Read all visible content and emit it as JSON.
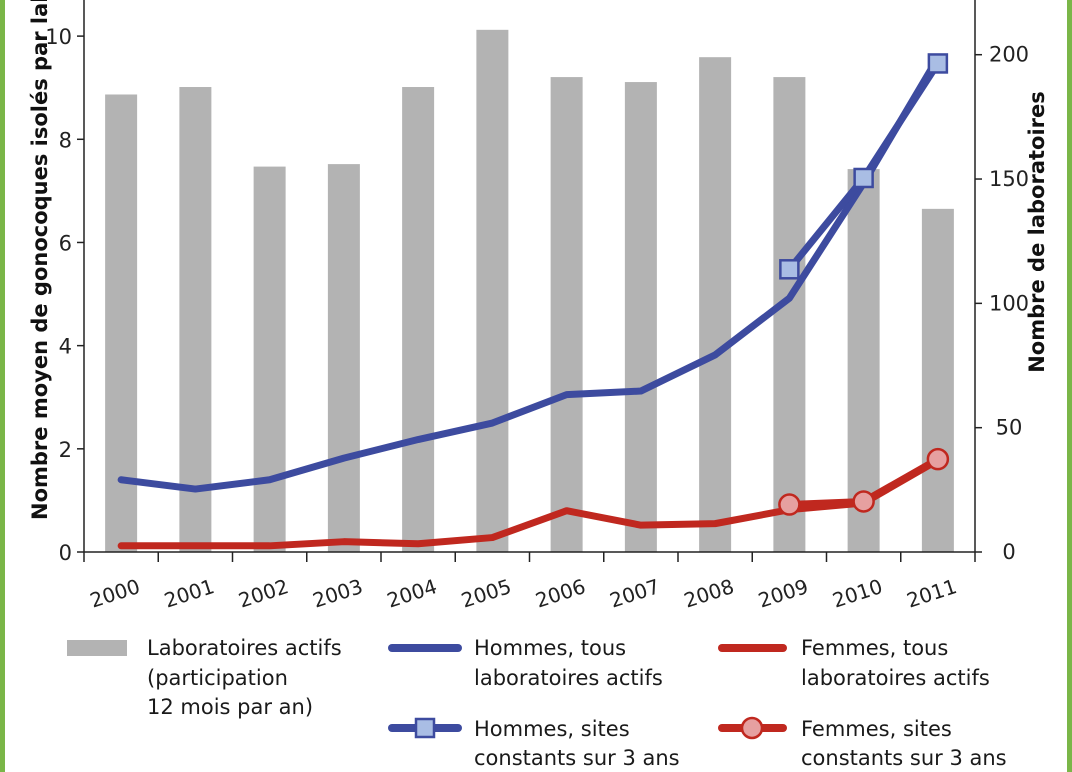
{
  "colors": {
    "bars": "#b3b3b3",
    "men": "#3d4b9f",
    "women": "#c0281f",
    "men_marker_fill": "#a9bde4",
    "women_marker_fill": "#e6a0a0",
    "border": "#7ab648"
  },
  "chart_data": {
    "type": "bar",
    "combo": "bar + line, dual y-axis",
    "categories": [
      "2000",
      "2001",
      "2002",
      "2003",
      "2004",
      "2005",
      "2006",
      "2007",
      "2008",
      "2009",
      "2010",
      "2011"
    ],
    "ylabel_left": "Nombre moyen de gonocoques isolés par laboratoire",
    "ylabel_right": "Nombre de laboratoires",
    "ylim_left": [
      0,
      10.7
    ],
    "ylim_right": [
      0,
      222
    ],
    "yticks_left": [
      "0",
      "2",
      "4",
      "6",
      "8",
      "10"
    ],
    "yticks_right": [
      "0",
      "50",
      "100",
      "150",
      "200"
    ],
    "bars": {
      "name": "Laboratoires actifs (participation 12 mois par an)",
      "axis": "right",
      "values": [
        184,
        187,
        155,
        156,
        187,
        210,
        191,
        189,
        199,
        191,
        154,
        138
      ]
    },
    "series": [
      {
        "name": "Hommes, tous laboratoires actifs",
        "axis": "left",
        "marker": "none",
        "values": [
          1.4,
          1.22,
          1.4,
          1.82,
          2.18,
          2.5,
          3.05,
          3.12,
          3.82,
          4.92,
          7.15,
          9.58
        ]
      },
      {
        "name": "Hommes, sites constants sur 3 ans",
        "axis": "left",
        "marker": "square",
        "x": [
          "2009",
          "2010",
          "2011"
        ],
        "values": [
          5.48,
          7.25,
          9.47
        ]
      },
      {
        "name": "Femmes, tous laboratoires actifs",
        "axis": "left",
        "marker": "none",
        "values": [
          0.12,
          0.12,
          0.12,
          0.2,
          0.16,
          0.28,
          0.8,
          0.52,
          0.55,
          0.82,
          0.95,
          1.78
        ]
      },
      {
        "name": "Femmes, sites constants sur 3 ans",
        "axis": "left",
        "marker": "circle",
        "x": [
          "2009",
          "2010",
          "2011"
        ],
        "values": [
          0.92,
          0.98,
          1.8
        ]
      }
    ],
    "legend": {
      "bars_lines": [
        "Laboratoires actifs",
        "(participation",
        "12 mois par an)"
      ],
      "men_all_lines": [
        "Hommes, tous",
        "laboratoires actifs"
      ],
      "women_all_lines": [
        "Femmes, tous",
        "laboratoires actifs"
      ],
      "men_const_lines": [
        "Hommes, sites",
        "constants sur 3 ans"
      ],
      "women_const_lines": [
        "Femmes, sites",
        "constants sur 3 ans"
      ]
    }
  }
}
